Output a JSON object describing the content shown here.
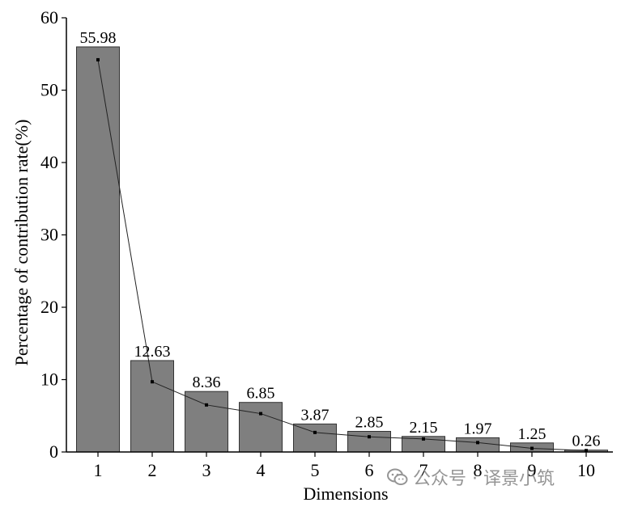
{
  "chart_data": {
    "type": "bar",
    "categories": [
      "1",
      "2",
      "3",
      "4",
      "5",
      "6",
      "7",
      "8",
      "9",
      "10"
    ],
    "series": [
      {
        "type": "bar",
        "values": [
          55.98,
          12.63,
          8.36,
          6.85,
          3.87,
          2.85,
          2.15,
          1.97,
          1.25,
          0.26
        ]
      },
      {
        "type": "line",
        "values": [
          54.2,
          9.7,
          6.5,
          5.3,
          2.7,
          2.1,
          1.8,
          1.3,
          0.5,
          0.2
        ]
      }
    ],
    "data_labels": [
      "55.98",
      "12.63",
      "8.36",
      "6.85",
      "3.87",
      "2.85",
      "2.15",
      "1.97",
      "1.25",
      "0.26"
    ],
    "xlabel": "Dimensions",
    "ylabel": "Percentage of contribution rate(%)",
    "ylim": [
      0,
      60
    ],
    "yticks": [
      "0",
      "10",
      "20",
      "30",
      "40",
      "50",
      "60"
    ],
    "grid": false,
    "colors": {
      "bar": "#7f7f7f",
      "bar_edge": "#333333",
      "line": "#222222"
    }
  },
  "watermark": {
    "icon": "wechat-icon",
    "text": "公众号 · 译景小筑"
  }
}
